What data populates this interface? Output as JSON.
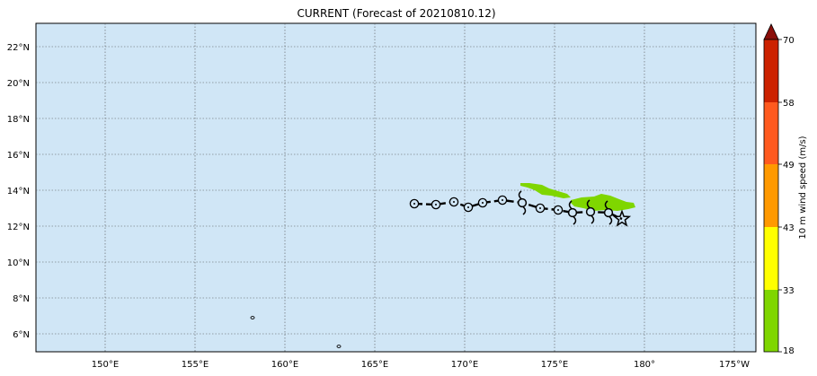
{
  "title": "CURRENT (Forecast of 20210810.12)",
  "map": {
    "ocean_color": "#d0e6f6",
    "grid": "dotted",
    "lat_ticks": [
      "22°N",
      "20°N",
      "18°N",
      "16°N",
      "14°N",
      "12°N",
      "10°N",
      "8°N",
      "6°N"
    ],
    "lon_ticks": [
      "150°E",
      "155°E",
      "160°E",
      "165°E",
      "170°E",
      "175°E",
      "180°",
      "175°W"
    ],
    "track_markers": [
      {
        "kind": "circle",
        "lon": 167.2,
        "lat": 13.25
      },
      {
        "kind": "circle",
        "lon": 168.4,
        "lat": 13.2
      },
      {
        "kind": "circle",
        "lon": 169.4,
        "lat": 13.35
      },
      {
        "kind": "circle",
        "lon": 170.2,
        "lat": 13.05
      },
      {
        "kind": "circle",
        "lon": 171.0,
        "lat": 13.3
      },
      {
        "kind": "circle",
        "lon": 172.1,
        "lat": 13.45
      },
      {
        "kind": "storm",
        "lon": 173.2,
        "lat": 13.3
      },
      {
        "kind": "circle",
        "lon": 174.2,
        "lat": 13.0
      },
      {
        "kind": "circle",
        "lon": 175.2,
        "lat": 12.9
      },
      {
        "kind": "storm",
        "lon": 176.0,
        "lat": 12.75
      },
      {
        "kind": "storm",
        "lon": 177.0,
        "lat": 12.8
      },
      {
        "kind": "storm",
        "lon": 178.0,
        "lat": 12.75
      },
      {
        "kind": "star",
        "lon": 178.75,
        "lat": 12.4
      }
    ],
    "wind_swaths": [
      {
        "points": [
          [
            173.1,
            14.4
          ],
          [
            173.6,
            14.4
          ],
          [
            174.3,
            14.3
          ],
          [
            174.7,
            14.1
          ],
          [
            175.2,
            13.95
          ],
          [
            175.7,
            13.8
          ],
          [
            175.9,
            13.6
          ],
          [
            175.5,
            13.55
          ],
          [
            174.8,
            13.7
          ],
          [
            174.3,
            13.75
          ],
          [
            173.9,
            14.0
          ],
          [
            173.5,
            14.15
          ],
          [
            173.1,
            14.25
          ]
        ]
      },
      {
        "points": [
          [
            175.9,
            13.45
          ],
          [
            176.5,
            13.6
          ],
          [
            177.2,
            13.65
          ],
          [
            177.6,
            13.8
          ],
          [
            178.1,
            13.7
          ],
          [
            178.6,
            13.5
          ],
          [
            179.0,
            13.35
          ],
          [
            179.4,
            13.3
          ],
          [
            179.5,
            13.05
          ],
          [
            179.1,
            12.95
          ],
          [
            178.5,
            12.85
          ],
          [
            177.8,
            12.9
          ],
          [
            177.2,
            12.85
          ],
          [
            176.6,
            13.0
          ],
          [
            176.1,
            13.1
          ],
          [
            175.9,
            13.3
          ]
        ]
      }
    ],
    "islands": [
      {
        "lon": 158.2,
        "lat": 6.9
      },
      {
        "lon": 163.0,
        "lat": 5.3
      }
    ]
  },
  "colorbar": {
    "label": "10 m wind speed (m/s)",
    "ticks": [
      "70",
      "58",
      "49",
      "43",
      "33",
      "18"
    ],
    "colors": [
      "#7fd600",
      "#ffff00",
      "#ff9900",
      "#ff5a1f",
      "#cc2200"
    ],
    "extend_color": "#8b0f0a"
  }
}
